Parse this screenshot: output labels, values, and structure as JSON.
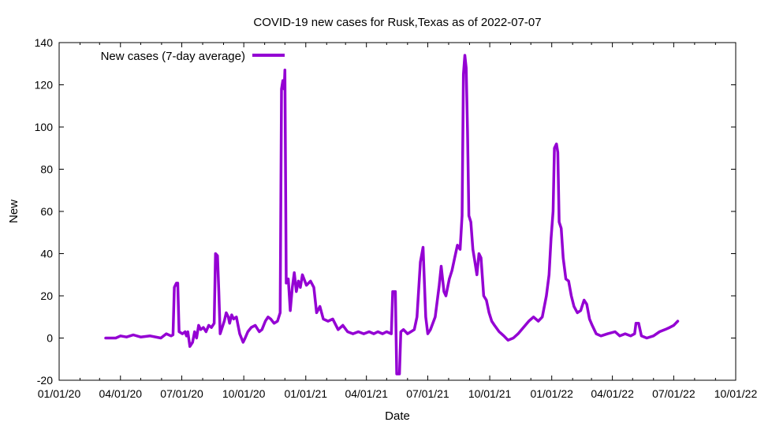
{
  "chart_data": {
    "type": "line",
    "title": "COVID-19 new cases for Rusk,Texas as of 2022-07-07",
    "xlabel": "Date",
    "ylabel": "New",
    "xlim": [
      "2020-01-01",
      "2022-10-01"
    ],
    "ylim": [
      -20,
      140
    ],
    "x_tick_labels": [
      "01/01/20",
      "04/01/20",
      "07/01/20",
      "10/01/20",
      "01/01/21",
      "04/01/21",
      "07/01/21",
      "10/01/21",
      "01/01/22",
      "04/01/22",
      "07/01/22",
      "10/01/22"
    ],
    "y_ticks": [
      -20,
      0,
      20,
      40,
      60,
      80,
      100,
      120,
      140
    ],
    "grid": false,
    "legend_position": "top-left",
    "series": [
      {
        "name": "New cases (7-day average)",
        "color": "#9400d3",
        "points": [
          [
            "2020-03-10",
            0
          ],
          [
            "2020-03-25",
            0
          ],
          [
            "2020-04-01",
            1
          ],
          [
            "2020-04-10",
            0.5
          ],
          [
            "2020-04-20",
            1.5
          ],
          [
            "2020-05-01",
            0.5
          ],
          [
            "2020-05-15",
            1
          ],
          [
            "2020-05-31",
            0
          ],
          [
            "2020-06-08",
            2
          ],
          [
            "2020-06-15",
            1
          ],
          [
            "2020-06-18",
            1.5
          ],
          [
            "2020-06-20",
            24
          ],
          [
            "2020-06-23",
            26
          ],
          [
            "2020-06-25",
            26
          ],
          [
            "2020-06-27",
            3
          ],
          [
            "2020-07-02",
            2
          ],
          [
            "2020-07-06",
            3
          ],
          [
            "2020-07-08",
            1
          ],
          [
            "2020-07-10",
            3
          ],
          [
            "2020-07-13",
            -4
          ],
          [
            "2020-07-17",
            -2
          ],
          [
            "2020-07-20",
            3
          ],
          [
            "2020-07-23",
            0
          ],
          [
            "2020-07-26",
            6
          ],
          [
            "2020-07-29",
            4
          ],
          [
            "2020-08-02",
            5
          ],
          [
            "2020-08-06",
            3
          ],
          [
            "2020-08-10",
            6
          ],
          [
            "2020-08-14",
            5
          ],
          [
            "2020-08-18",
            7
          ],
          [
            "2020-08-20",
            40
          ],
          [
            "2020-08-23",
            39
          ],
          [
            "2020-08-25",
            22
          ],
          [
            "2020-08-27",
            2
          ],
          [
            "2020-08-30",
            5
          ],
          [
            "2020-09-02",
            8
          ],
          [
            "2020-09-05",
            12
          ],
          [
            "2020-09-08",
            10
          ],
          [
            "2020-09-10",
            7
          ],
          [
            "2020-09-13",
            11
          ],
          [
            "2020-09-16",
            9
          ],
          [
            "2020-09-20",
            10
          ],
          [
            "2020-09-25",
            2
          ],
          [
            "2020-09-30",
            -2
          ],
          [
            "2020-10-03",
            0
          ],
          [
            "2020-10-07",
            3
          ],
          [
            "2020-10-12",
            5
          ],
          [
            "2020-10-18",
            6
          ],
          [
            "2020-10-24",
            3
          ],
          [
            "2020-10-28",
            4
          ],
          [
            "2020-11-02",
            8
          ],
          [
            "2020-11-06",
            10
          ],
          [
            "2020-11-10",
            9
          ],
          [
            "2020-11-15",
            7
          ],
          [
            "2020-11-20",
            8
          ],
          [
            "2020-11-24",
            12
          ],
          [
            "2020-11-26",
            118
          ],
          [
            "2020-11-28",
            122
          ],
          [
            "2020-11-30",
            118
          ],
          [
            "2020-12-01",
            127
          ],
          [
            "2020-12-03",
            26
          ],
          [
            "2020-12-06",
            28
          ],
          [
            "2020-12-09",
            13
          ],
          [
            "2020-12-12",
            24
          ],
          [
            "2020-12-15",
            31
          ],
          [
            "2020-12-18",
            22
          ],
          [
            "2020-12-21",
            27
          ],
          [
            "2020-12-24",
            24
          ],
          [
            "2020-12-27",
            30
          ],
          [
            "2021-01-02",
            25
          ],
          [
            "2021-01-08",
            27
          ],
          [
            "2021-01-13",
            24
          ],
          [
            "2021-01-17",
            12
          ],
          [
            "2021-01-22",
            15
          ],
          [
            "2021-01-27",
            9
          ],
          [
            "2021-02-03",
            8
          ],
          [
            "2021-02-10",
            9
          ],
          [
            "2021-02-18",
            4
          ],
          [
            "2021-02-25",
            6
          ],
          [
            "2021-03-04",
            3
          ],
          [
            "2021-03-12",
            2
          ],
          [
            "2021-03-20",
            3
          ],
          [
            "2021-03-28",
            2
          ],
          [
            "2021-04-05",
            3
          ],
          [
            "2021-04-12",
            2
          ],
          [
            "2021-04-18",
            3
          ],
          [
            "2021-04-25",
            2
          ],
          [
            "2021-05-01",
            3
          ],
          [
            "2021-05-08",
            2
          ],
          [
            "2021-05-10",
            22
          ],
          [
            "2021-05-14",
            22
          ],
          [
            "2021-05-16",
            -17
          ],
          [
            "2021-05-20",
            -17
          ],
          [
            "2021-05-22",
            3
          ],
          [
            "2021-05-26",
            4
          ],
          [
            "2021-06-01",
            2
          ],
          [
            "2021-06-06",
            3
          ],
          [
            "2021-06-11",
            4
          ],
          [
            "2021-06-15",
            10
          ],
          [
            "2021-06-20",
            36
          ],
          [
            "2021-06-24",
            43
          ],
          [
            "2021-06-28",
            10
          ],
          [
            "2021-07-01",
            2
          ],
          [
            "2021-07-05",
            4
          ],
          [
            "2021-07-12",
            10
          ],
          [
            "2021-07-18",
            25
          ],
          [
            "2021-07-21",
            34
          ],
          [
            "2021-07-25",
            22
          ],
          [
            "2021-07-28",
            20
          ],
          [
            "2021-08-02",
            28
          ],
          [
            "2021-08-06",
            32
          ],
          [
            "2021-08-10",
            38
          ],
          [
            "2021-08-14",
            44
          ],
          [
            "2021-08-18",
            42
          ],
          [
            "2021-08-21",
            58
          ],
          [
            "2021-08-23",
            125
          ],
          [
            "2021-08-25",
            134
          ],
          [
            "2021-08-27",
            128
          ],
          [
            "2021-08-29",
            98
          ],
          [
            "2021-08-31",
            58
          ],
          [
            "2021-09-03",
            55
          ],
          [
            "2021-09-06",
            42
          ],
          [
            "2021-09-09",
            36
          ],
          [
            "2021-09-12",
            30
          ],
          [
            "2021-09-15",
            40
          ],
          [
            "2021-09-18",
            38
          ],
          [
            "2021-09-22",
            20
          ],
          [
            "2021-09-26",
            18
          ],
          [
            "2021-09-30",
            12
          ],
          [
            "2021-10-04",
            8
          ],
          [
            "2021-10-08",
            6
          ],
          [
            "2021-10-15",
            3
          ],
          [
            "2021-10-22",
            1
          ],
          [
            "2021-10-28",
            -1
          ],
          [
            "2021-11-05",
            0
          ],
          [
            "2021-11-12",
            2
          ],
          [
            "2021-11-20",
            5
          ],
          [
            "2021-11-28",
            8
          ],
          [
            "2021-12-05",
            10
          ],
          [
            "2021-12-12",
            8
          ],
          [
            "2021-12-18",
            10
          ],
          [
            "2021-12-24",
            20
          ],
          [
            "2021-12-28",
            30
          ],
          [
            "2021-12-31",
            47
          ],
          [
            "2022-01-03",
            60
          ],
          [
            "2022-01-05",
            90
          ],
          [
            "2022-01-08",
            92
          ],
          [
            "2022-01-10",
            88
          ],
          [
            "2022-01-12",
            55
          ],
          [
            "2022-01-15",
            52
          ],
          [
            "2022-01-18",
            38
          ],
          [
            "2022-01-22",
            28
          ],
          [
            "2022-01-26",
            27
          ],
          [
            "2022-01-30",
            20
          ],
          [
            "2022-02-03",
            15
          ],
          [
            "2022-02-08",
            12
          ],
          [
            "2022-02-13",
            13
          ],
          [
            "2022-02-18",
            18
          ],
          [
            "2022-02-22",
            16
          ],
          [
            "2022-02-26",
            9
          ],
          [
            "2022-03-02",
            6
          ],
          [
            "2022-03-08",
            2
          ],
          [
            "2022-03-15",
            1
          ],
          [
            "2022-03-25",
            2
          ],
          [
            "2022-04-05",
            3
          ],
          [
            "2022-04-12",
            1
          ],
          [
            "2022-04-20",
            2
          ],
          [
            "2022-04-28",
            1
          ],
          [
            "2022-05-04",
            2
          ],
          [
            "2022-05-06",
            7
          ],
          [
            "2022-05-10",
            7
          ],
          [
            "2022-05-14",
            1
          ],
          [
            "2022-05-22",
            0
          ],
          [
            "2022-06-01",
            1
          ],
          [
            "2022-06-10",
            3
          ],
          [
            "2022-06-18",
            4
          ],
          [
            "2022-06-25",
            5
          ],
          [
            "2022-07-01",
            6
          ],
          [
            "2022-07-04",
            7
          ],
          [
            "2022-07-07",
            8
          ]
        ]
      }
    ]
  }
}
